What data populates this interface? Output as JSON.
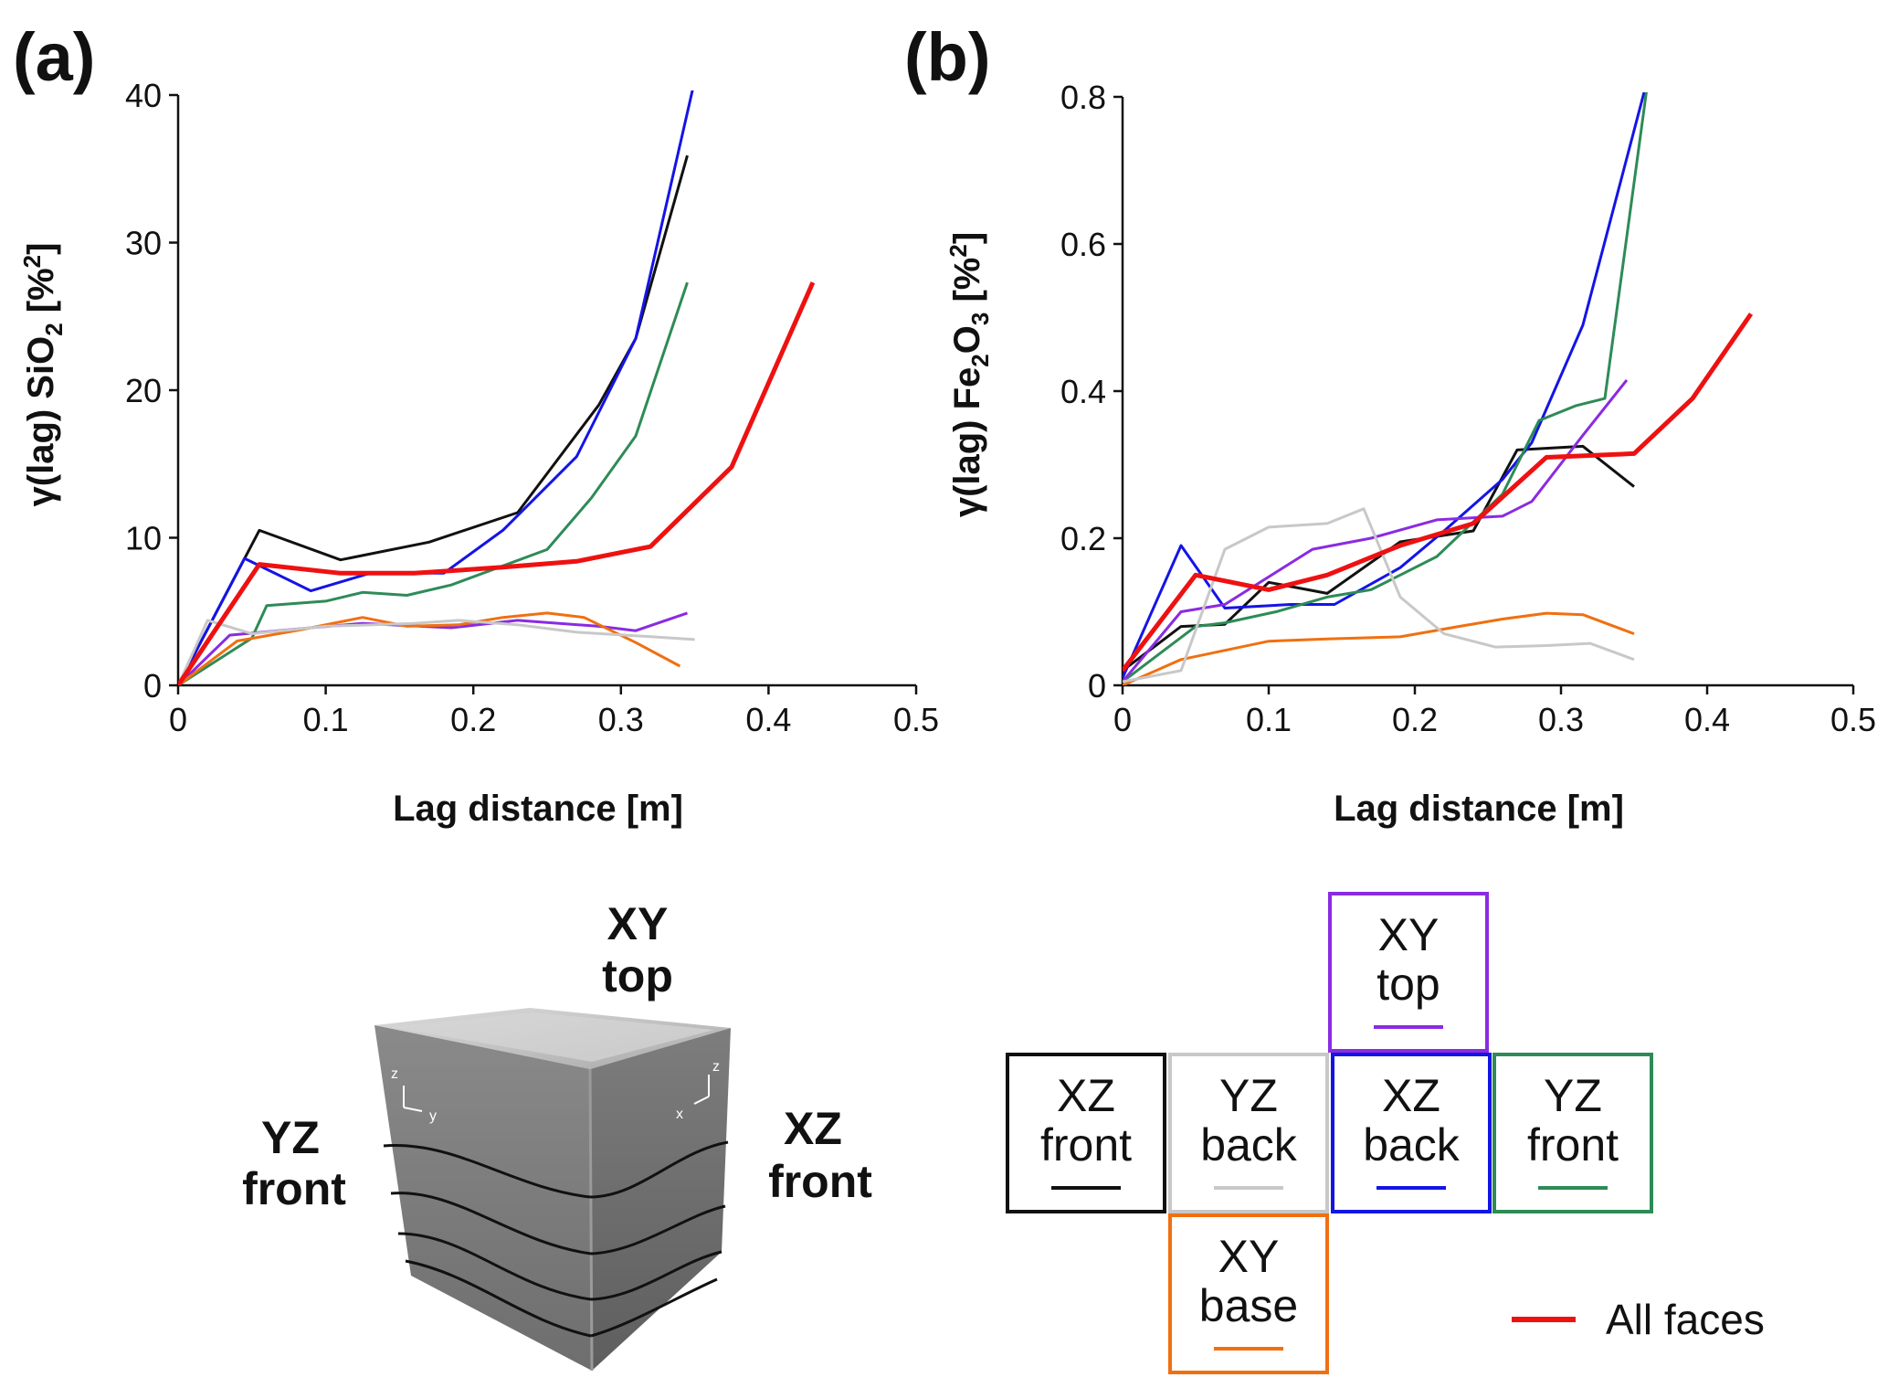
{
  "panel_labels": [
    "(a)",
    "(b)"
  ],
  "colors": {
    "XZ_front": "#111111",
    "YZ_back": "#c8c8c8",
    "XZ_back": "#1414e6",
    "YZ_front": "#2e8b57",
    "XY_top": "#8a2be2",
    "XY_base": "#f07010",
    "All_faces": "#ee1111"
  },
  "chart_data": [
    {
      "type": "line",
      "panel": "(a)",
      "xlabel": "Lag distance [m]",
      "ylabel_parts": [
        "γ(lag) SiO",
        "2",
        " [%",
        "2",
        "]"
      ],
      "xlim": [
        0,
        0.5
      ],
      "ylim": [
        0,
        40
      ],
      "xticks": [
        "0",
        "0.1",
        "0.2",
        "0.3",
        "0.4",
        "0.5"
      ],
      "yticks": [
        "0",
        "10",
        "20",
        "30",
        "40"
      ],
      "series": [
        {
          "key": "XZ_front",
          "points": [
            [
              0,
              0
            ],
            [
              0.055,
              10.5
            ],
            [
              0.11,
              8.5
            ],
            [
              0.17,
              9.7
            ],
            [
              0.23,
              11.7
            ],
            [
              0.285,
              19.0
            ],
            [
              0.31,
              23.5
            ],
            [
              0.345,
              35.9
            ]
          ]
        },
        {
          "key": "XZ_back",
          "points": [
            [
              0,
              0
            ],
            [
              0.045,
              8.6
            ],
            [
              0.09,
              6.4
            ],
            [
              0.13,
              7.6
            ],
            [
              0.18,
              7.6
            ],
            [
              0.22,
              10.5
            ],
            [
              0.27,
              15.5
            ],
            [
              0.31,
              23.5
            ],
            [
              0.35,
              41
            ]
          ]
        },
        {
          "key": "YZ_front",
          "points": [
            [
              0,
              0
            ],
            [
              0.05,
              3.2
            ],
            [
              0.06,
              5.4
            ],
            [
              0.1,
              5.7
            ],
            [
              0.125,
              6.3
            ],
            [
              0.155,
              6.1
            ],
            [
              0.185,
              6.8
            ],
            [
              0.25,
              9.2
            ],
            [
              0.28,
              12.7
            ],
            [
              0.31,
              16.9
            ],
            [
              0.345,
              27.3
            ]
          ]
        },
        {
          "key": "All_faces",
          "points": [
            [
              0,
              0
            ],
            [
              0.055,
              8.2
            ],
            [
              0.11,
              7.6
            ],
            [
              0.16,
              7.6
            ],
            [
              0.22,
              8.0
            ],
            [
              0.27,
              8.4
            ],
            [
              0.32,
              9.4
            ],
            [
              0.375,
              14.8
            ],
            [
              0.43,
              27.3
            ]
          ]
        },
        {
          "key": "XY_top",
          "points": [
            [
              0,
              0
            ],
            [
              0.035,
              3.4
            ],
            [
              0.09,
              3.9
            ],
            [
              0.125,
              4.2
            ],
            [
              0.185,
              3.9
            ],
            [
              0.23,
              4.4
            ],
            [
              0.285,
              4.0
            ],
            [
              0.31,
              3.7
            ],
            [
              0.345,
              4.9
            ]
          ]
        },
        {
          "key": "XY_base",
          "points": [
            [
              0,
              0
            ],
            [
              0.04,
              3.0
            ],
            [
              0.085,
              3.8
            ],
            [
              0.125,
              4.6
            ],
            [
              0.155,
              4.0
            ],
            [
              0.19,
              4.1
            ],
            [
              0.22,
              4.6
            ],
            [
              0.25,
              4.9
            ],
            [
              0.275,
              4.6
            ],
            [
              0.31,
              2.9
            ],
            [
              0.34,
              1.3
            ]
          ]
        },
        {
          "key": "YZ_back",
          "points": [
            [
              0,
              0
            ],
            [
              0.02,
              4.4
            ],
            [
              0.05,
              3.5
            ],
            [
              0.1,
              4.0
            ],
            [
              0.16,
              4.2
            ],
            [
              0.19,
              4.4
            ],
            [
              0.23,
              4.1
            ],
            [
              0.27,
              3.6
            ],
            [
              0.32,
              3.3
            ],
            [
              0.35,
              3.1
            ]
          ]
        }
      ]
    },
    {
      "type": "line",
      "panel": "(b)",
      "xlabel": "Lag distance [m]",
      "ylabel_parts": [
        "γ(lag) Fe",
        "2",
        "O",
        "3",
        " [%",
        "2",
        "]"
      ],
      "xlim": [
        0,
        0.5
      ],
      "ylim": [
        0,
        0.8
      ],
      "xticks": [
        "0",
        "0.1",
        "0.2",
        "0.3",
        "0.4",
        "0.5"
      ],
      "yticks": [
        "0",
        "0.2",
        "0.4",
        "0.6",
        "0.8"
      ],
      "series": [
        {
          "key": "XZ_front",
          "points": [
            [
              0,
              0.02
            ],
            [
              0.04,
              0.08
            ],
            [
              0.07,
              0.083
            ],
            [
              0.1,
              0.14
            ],
            [
              0.14,
              0.125
            ],
            [
              0.19,
              0.195
            ],
            [
              0.24,
              0.21
            ],
            [
              0.27,
              0.32
            ],
            [
              0.315,
              0.325
            ],
            [
              0.35,
              0.27
            ]
          ]
        },
        {
          "key": "XZ_back",
          "points": [
            [
              0,
              0.01
            ],
            [
              0.04,
              0.19
            ],
            [
              0.07,
              0.105
            ],
            [
              0.115,
              0.11
            ],
            [
              0.145,
              0.11
            ],
            [
              0.19,
              0.16
            ],
            [
              0.22,
              0.21
            ],
            [
              0.26,
              0.28
            ],
            [
              0.28,
              0.33
            ],
            [
              0.315,
              0.49
            ],
            [
              0.36,
              0.83
            ]
          ]
        },
        {
          "key": "YZ_front",
          "points": [
            [
              0,
              0.005
            ],
            [
              0.05,
              0.08
            ],
            [
              0.07,
              0.085
            ],
            [
              0.105,
              0.1
            ],
            [
              0.14,
              0.12
            ],
            [
              0.17,
              0.13
            ],
            [
              0.19,
              0.15
            ],
            [
              0.215,
              0.175
            ],
            [
              0.26,
              0.26
            ],
            [
              0.285,
              0.36
            ],
            [
              0.31,
              0.38
            ],
            [
              0.33,
              0.39
            ],
            [
              0.36,
              0.83
            ]
          ]
        },
        {
          "key": "All_faces",
          "points": [
            [
              0,
              0.02
            ],
            [
              0.05,
              0.15
            ],
            [
              0.1,
              0.13
            ],
            [
              0.14,
              0.15
            ],
            [
              0.19,
              0.19
            ],
            [
              0.24,
              0.22
            ],
            [
              0.29,
              0.31
            ],
            [
              0.35,
              0.315
            ],
            [
              0.39,
              0.39
            ],
            [
              0.43,
              0.505
            ]
          ]
        },
        {
          "key": "XY_top",
          "points": [
            [
              0,
              0.005
            ],
            [
              0.04,
              0.1
            ],
            [
              0.07,
              0.11
            ],
            [
              0.13,
              0.185
            ],
            [
              0.17,
              0.2
            ],
            [
              0.215,
              0.225
            ],
            [
              0.26,
              0.23
            ],
            [
              0.28,
              0.25
            ],
            [
              0.315,
              0.34
            ],
            [
              0.345,
              0.415
            ]
          ]
        },
        {
          "key": "XY_base",
          "points": [
            [
              0,
              0
            ],
            [
              0.04,
              0.035
            ],
            [
              0.1,
              0.06
            ],
            [
              0.14,
              0.063
            ],
            [
              0.19,
              0.066
            ],
            [
              0.23,
              0.08
            ],
            [
              0.26,
              0.09
            ],
            [
              0.29,
              0.098
            ],
            [
              0.315,
              0.096
            ],
            [
              0.35,
              0.07
            ]
          ]
        },
        {
          "key": "YZ_back",
          "points": [
            [
              0,
              0.005
            ],
            [
              0.04,
              0.02
            ],
            [
              0.07,
              0.185
            ],
            [
              0.1,
              0.215
            ],
            [
              0.14,
              0.22
            ],
            [
              0.165,
              0.24
            ],
            [
              0.19,
              0.12
            ],
            [
              0.22,
              0.07
            ],
            [
              0.255,
              0.052
            ],
            [
              0.29,
              0.054
            ],
            [
              0.32,
              0.057
            ],
            [
              0.35,
              0.035
            ]
          ]
        }
      ]
    }
  ],
  "cube": {
    "top_label": [
      "XY",
      "top"
    ],
    "left_label": [
      "YZ",
      "front"
    ],
    "right_label": [
      "XZ",
      "front"
    ],
    "left_axes": [
      "z",
      "y"
    ],
    "right_axes": [
      "x",
      "z"
    ]
  },
  "legend": {
    "faces": [
      {
        "key": "XY_top",
        "lines": [
          "XY",
          "top"
        ]
      },
      {
        "key": "XZ_front",
        "lines": [
          "XZ",
          "front"
        ]
      },
      {
        "key": "YZ_back",
        "lines": [
          "YZ",
          "back"
        ]
      },
      {
        "key": "XZ_back",
        "lines": [
          "XZ",
          "back"
        ]
      },
      {
        "key": "YZ_front",
        "lines": [
          "YZ",
          "front"
        ]
      },
      {
        "key": "XY_base",
        "lines": [
          "XY",
          "base"
        ]
      }
    ],
    "all_faces_label": "All faces"
  }
}
